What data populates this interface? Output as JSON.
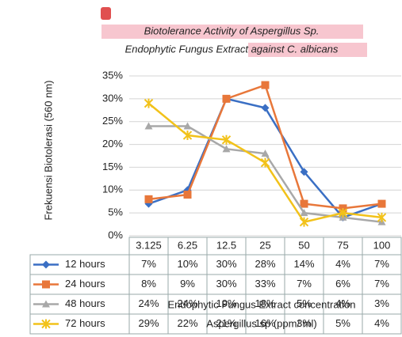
{
  "chart_data": {
    "type": "line",
    "title": [
      "Biotolerance Activity of Aspergillus Sp.",
      "Endophytic Fungus Extract against C. albicans"
    ],
    "y_label": "Frekuensi Biotolerasi (560 nm)",
    "x_label": [
      "Endophytic Fungus Extract concentration",
      "Aspergillus sp (ppm/ ml)"
    ],
    "categories": [
      "3.125",
      "6.25",
      "12.5",
      "25",
      "50",
      "75",
      "100"
    ],
    "ylim": [
      0,
      35
    ],
    "yticks": [
      {
        "value": 0,
        "label": "0%"
      },
      {
        "value": 5,
        "label": "5%"
      },
      {
        "value": 10,
        "label": "10%"
      },
      {
        "value": 15,
        "label": "15%"
      },
      {
        "value": 20,
        "label": "20%"
      },
      {
        "value": 25,
        "label": "25%"
      },
      {
        "value": 30,
        "label": "30%"
      },
      {
        "value": 35,
        "label": "35%"
      }
    ],
    "grid": true,
    "series": [
      {
        "name": "12 hours",
        "color": "#3a6fc4",
        "values": [
          7,
          10,
          30,
          28,
          14,
          4,
          7
        ],
        "value_labels": [
          "7%",
          "10%",
          "30%",
          "28%",
          "14%",
          "4%",
          "7%"
        ]
      },
      {
        "name": "24 hours",
        "color": "#e8773a",
        "values": [
          8,
          9,
          30,
          33,
          7,
          6,
          7
        ],
        "value_labels": [
          "8%",
          "9%",
          "30%",
          "33%",
          "7%",
          "6%",
          "7%"
        ]
      },
      {
        "name": "48 hours",
        "color": "#a8a8a8",
        "values": [
          24,
          24,
          19,
          18,
          5,
          4,
          3
        ],
        "value_labels": [
          "24%",
          "24%",
          "19%",
          "18%",
          "5%",
          "4%",
          "3%"
        ]
      },
      {
        "name": "72 hours",
        "color": "#f2c21a",
        "values": [
          29,
          22,
          21,
          16,
          3,
          5,
          4
        ],
        "value_labels": [
          "29%",
          "22%",
          "21%",
          "16%",
          "3%",
          "5%",
          "4%"
        ]
      }
    ]
  }
}
